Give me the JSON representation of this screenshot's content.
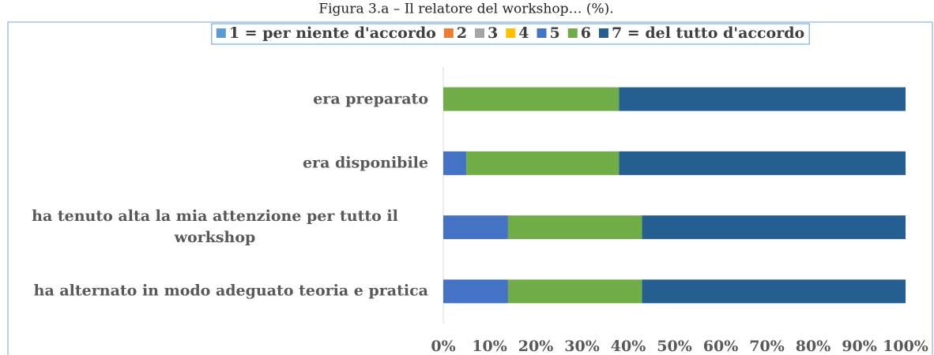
{
  "chart_data": {
    "type": "stacked-barh",
    "title": "Figura 3.a – Il relatore del workshop… (%).",
    "categories": [
      "era preparato",
      "era disponibile",
      "ha tenuto alta la mia attenzione per tutto il workshop",
      "ha alternato in modo adeguato teoria e pratica"
    ],
    "series": [
      {
        "name": "1  = per niente d'accordo",
        "color": "#5b9bd5",
        "values": [
          0,
          0,
          0,
          0
        ]
      },
      {
        "name": "2",
        "color": "#ed7d31",
        "values": [
          0,
          0,
          0,
          0
        ]
      },
      {
        "name": "3",
        "color": "#a5a5a5",
        "values": [
          0,
          0,
          0,
          0
        ]
      },
      {
        "name": "4",
        "color": "#ffc000",
        "values": [
          0,
          0,
          0,
          0
        ]
      },
      {
        "name": "5",
        "color": "#4472c4",
        "values": [
          0,
          5,
          14,
          14
        ]
      },
      {
        "name": "6",
        "color": "#70ad47",
        "values": [
          38,
          33,
          29,
          29
        ]
      },
      {
        "name": "7 = del tutto d'accordo",
        "color": "#255e91",
        "values": [
          62,
          62,
          57,
          57
        ]
      }
    ],
    "xlim": [
      0,
      100
    ],
    "xticks": [
      {
        "value": 0,
        "label": "0%"
      },
      {
        "value": 10,
        "label": "10%"
      },
      {
        "value": 20,
        "label": "20%"
      },
      {
        "value": 30,
        "label": "30%"
      },
      {
        "value": 40,
        "label": "40%"
      },
      {
        "value": 50,
        "label": "50%"
      },
      {
        "value": 60,
        "label": "60%"
      },
      {
        "value": 70,
        "label": "70%"
      },
      {
        "value": 80,
        "label": "80%"
      },
      {
        "value": 90,
        "label": "90%"
      },
      {
        "value": 100,
        "label": "100%"
      }
    ],
    "grid": false,
    "legend": "top"
  }
}
